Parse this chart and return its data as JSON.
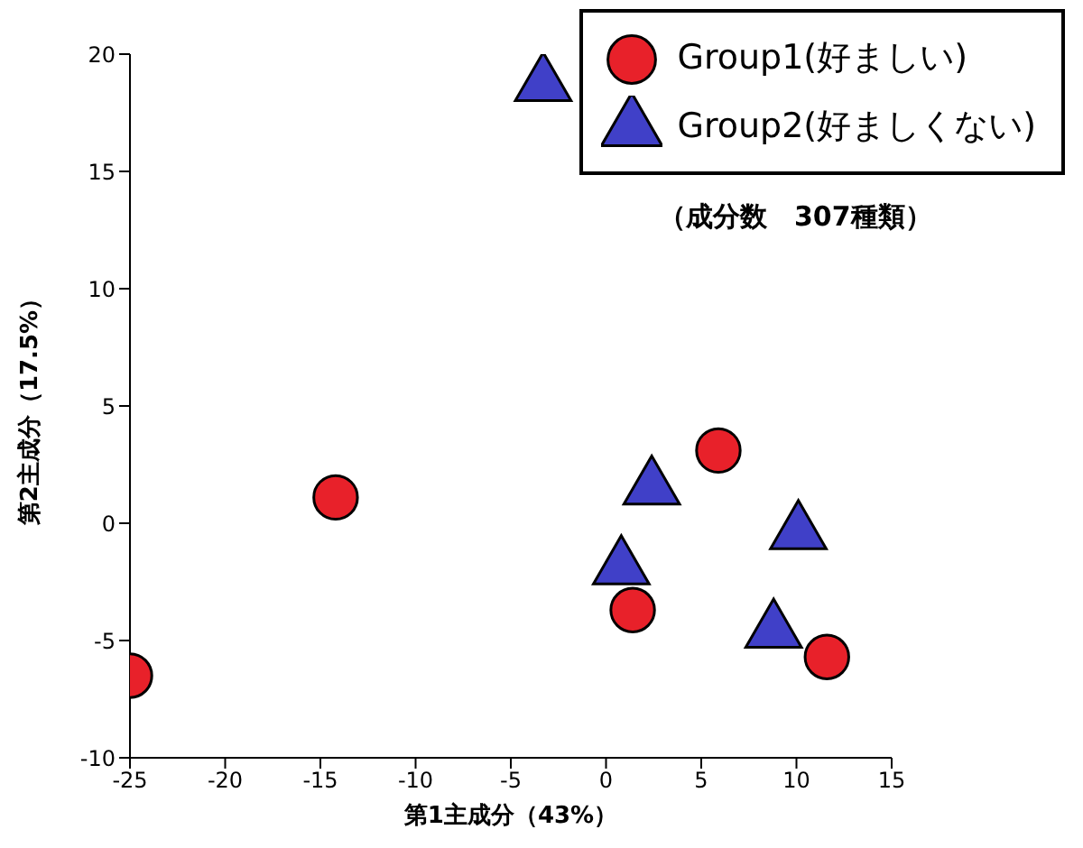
{
  "chart_data": {
    "type": "scatter",
    "xlabel": "第1主成分（43%）",
    "ylabel": "第2主成分（17.5%）",
    "annotations": [
      "（成分数　307種類）"
    ],
    "series": [
      {
        "name": "Group1(好ましい)",
        "color": "#e8212a",
        "marker": "circle",
        "x": [
          -25,
          -14.2,
          5.9,
          1.4,
          11.6
        ],
        "values": [
          -6.5,
          1.1,
          3.1,
          -3.7,
          -5.7
        ]
      },
      {
        "name": "Group2(好ましくない)",
        "color": "#4040c8",
        "marker": "triangle",
        "x": [
          -3.3,
          2.4,
          0.8,
          10.1,
          8.8
        ],
        "values": [
          18.7,
          1.5,
          -1.9,
          -0.4,
          -4.6
        ]
      }
    ],
    "xlim": [
      -25,
      15
    ],
    "xticks": [
      -25,
      -20,
      -15,
      -10,
      -5,
      0,
      5,
      10,
      15
    ],
    "ylim": [
      -10,
      20
    ],
    "yticks": [
      -10,
      -5,
      0,
      5,
      10,
      15,
      20
    ],
    "grid": false,
    "legend": "top right"
  }
}
